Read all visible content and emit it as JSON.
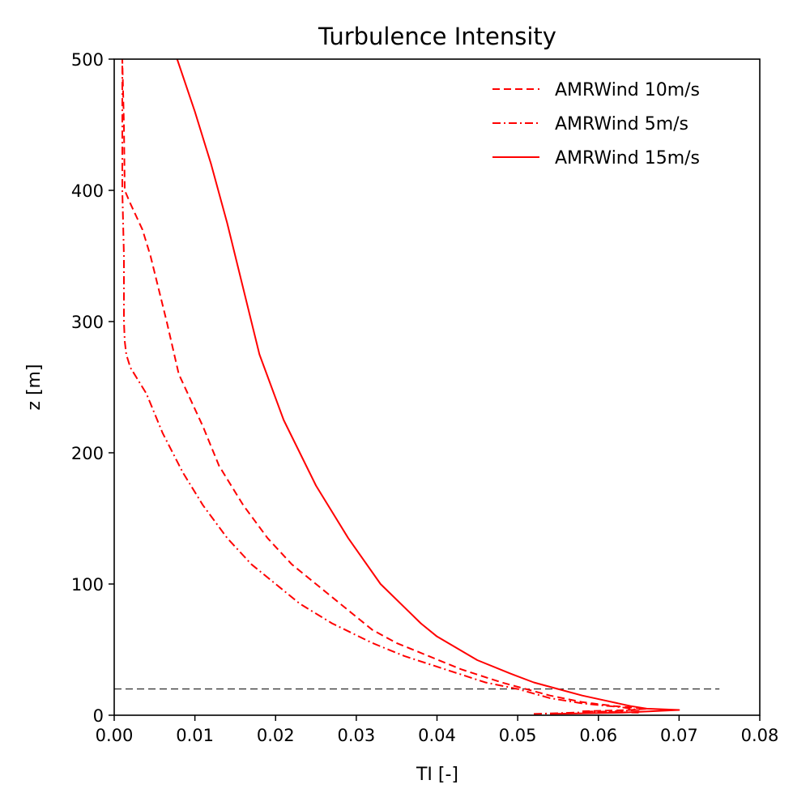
{
  "chart_data": {
    "type": "line",
    "title": "Turbulence Intensity",
    "xlabel": "TI [-]",
    "ylabel": "z [m]",
    "xlim": [
      0.0,
      0.08
    ],
    "ylim": [
      0,
      500
    ],
    "xticks": [
      "0.00",
      "0.01",
      "0.02",
      "0.03",
      "0.04",
      "0.05",
      "0.06",
      "0.07",
      "0.08"
    ],
    "yticks": [
      "0",
      "100",
      "200",
      "300",
      "400",
      "500"
    ],
    "grid": false,
    "legend_position": "top-right",
    "series": [
      {
        "name": "AMRWind 10m/s",
        "color": "#ff0000",
        "linestyle": "dashed",
        "points": [
          [
            0.065,
            2
          ],
          [
            0.058,
            3
          ],
          [
            0.064,
            4
          ],
          [
            0.066,
            5
          ],
          [
            0.062,
            7
          ],
          [
            0.058,
            10
          ],
          [
            0.054,
            15
          ],
          [
            0.051,
            20
          ],
          [
            0.048,
            25
          ],
          [
            0.043,
            35
          ],
          [
            0.039,
            45
          ],
          [
            0.035,
            55
          ],
          [
            0.032,
            65
          ],
          [
            0.029,
            80
          ],
          [
            0.027,
            90
          ],
          [
            0.025,
            100
          ],
          [
            0.022,
            115
          ],
          [
            0.019,
            135
          ],
          [
            0.016,
            160
          ],
          [
            0.013,
            190
          ],
          [
            0.011,
            220
          ],
          [
            0.008,
            260
          ],
          [
            0.0065,
            300
          ],
          [
            0.0045,
            350
          ],
          [
            0.0035,
            370
          ],
          [
            0.002,
            390
          ],
          [
            0.0013,
            400
          ],
          [
            0.0012,
            450
          ],
          [
            0.001,
            500
          ]
        ]
      },
      {
        "name": "AMRWind 5m/s",
        "color": "#ff0000",
        "linestyle": "dashdot",
        "points": [
          [
            0.052,
            1
          ],
          [
            0.057,
            2
          ],
          [
            0.062,
            3
          ],
          [
            0.065,
            4
          ],
          [
            0.063,
            6
          ],
          [
            0.058,
            9
          ],
          [
            0.054,
            13
          ],
          [
            0.05,
            20
          ],
          [
            0.046,
            25
          ],
          [
            0.041,
            35
          ],
          [
            0.036,
            45
          ],
          [
            0.032,
            55
          ],
          [
            0.027,
            70
          ],
          [
            0.023,
            85
          ],
          [
            0.02,
            100
          ],
          [
            0.017,
            115
          ],
          [
            0.014,
            135
          ],
          [
            0.011,
            160
          ],
          [
            0.0085,
            185
          ],
          [
            0.006,
            215
          ],
          [
            0.004,
            245
          ],
          [
            0.0025,
            260
          ],
          [
            0.002,
            265
          ],
          [
            0.0015,
            275
          ],
          [
            0.0013,
            285
          ],
          [
            0.0012,
            300
          ],
          [
            0.0012,
            350
          ],
          [
            0.001,
            400
          ],
          [
            0.001,
            450
          ],
          [
            0.001,
            500
          ]
        ]
      },
      {
        "name": "AMRWind 15m/s",
        "color": "#ff0000",
        "linestyle": "solid",
        "points": [
          [
            0.054,
            1
          ],
          [
            0.063,
            2
          ],
          [
            0.07,
            4
          ],
          [
            0.066,
            5
          ],
          [
            0.064,
            7
          ],
          [
            0.061,
            11
          ],
          [
            0.058,
            15
          ],
          [
            0.055,
            20
          ],
          [
            0.052,
            25
          ],
          [
            0.049,
            32
          ],
          [
            0.045,
            42
          ],
          [
            0.04,
            60
          ],
          [
            0.038,
            70
          ],
          [
            0.033,
            100
          ],
          [
            0.029,
            135
          ],
          [
            0.025,
            175
          ],
          [
            0.021,
            225
          ],
          [
            0.018,
            275
          ],
          [
            0.016,
            325
          ],
          [
            0.014,
            375
          ],
          [
            0.012,
            420
          ],
          [
            0.01,
            460
          ],
          [
            0.0078,
            500
          ]
        ]
      }
    ],
    "reference_lines": [
      {
        "orientation": "horizontal",
        "y": 20,
        "x_range": [
          0.0,
          0.075
        ],
        "color": "#000000",
        "linestyle": "dashed"
      }
    ]
  }
}
